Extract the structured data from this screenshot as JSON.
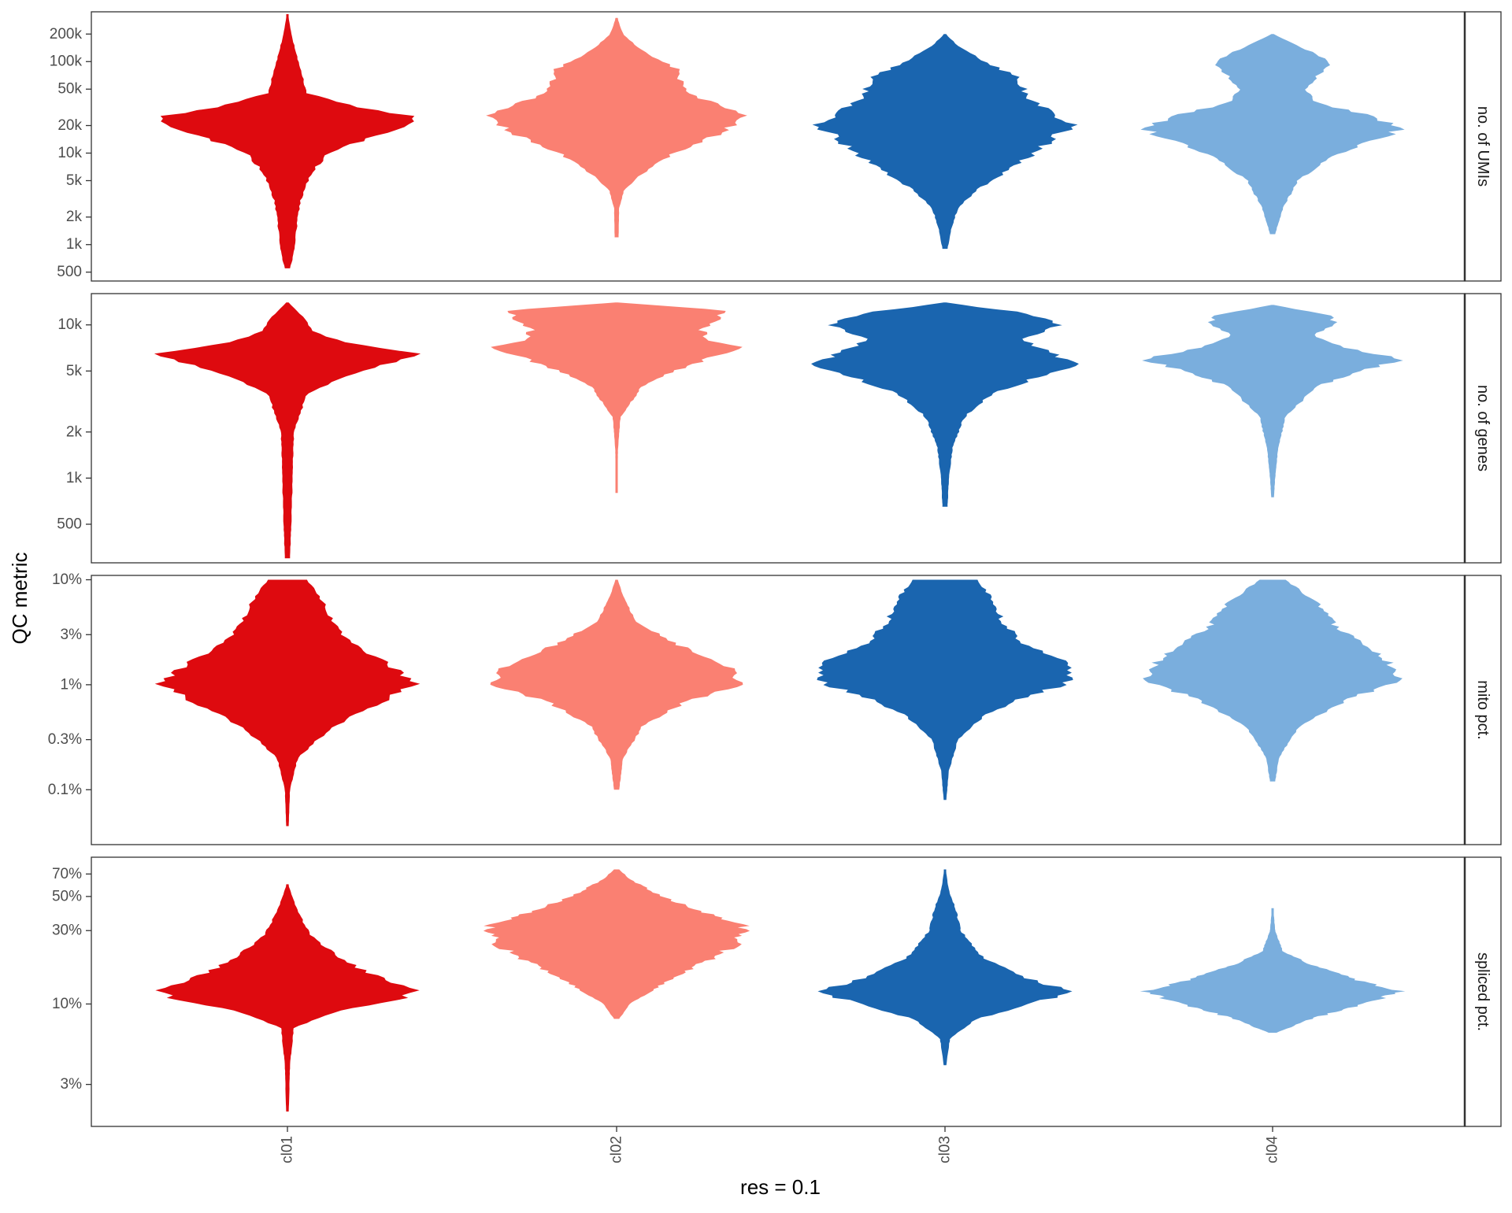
{
  "chart_data": {
    "type": "violin",
    "xlabel": "res = 0.1",
    "ylabel": "QC metric",
    "categories": [
      "cl01",
      "cl02",
      "cl03",
      "cl04"
    ],
    "colors": {
      "cl01": "#DE0A0F",
      "cl02": "#FA8072",
      "cl03": "#1A65AF",
      "cl04": "#7AAEDD"
    },
    "y_scale": "log10",
    "grid": false,
    "legend": "none",
    "panels": [
      {
        "strip_label": "no. of UMIs",
        "ylim": [
          400,
          350000
        ],
        "tick_values": [
          500,
          1000,
          2000,
          5000,
          10000,
          20000,
          50000,
          100000,
          200000
        ],
        "tick_labels": [
          "500",
          "1k",
          "2k",
          "5k",
          "10k",
          "20k",
          "50k",
          "100k",
          "200k"
        ],
        "violins": [
          {
            "category": "cl01",
            "min": 550,
            "max": 330000,
            "profile": [
              [
                550,
                0.02
              ],
              [
                800,
                0.05
              ],
              [
                1500,
                0.07
              ],
              [
                3000,
                0.1
              ],
              [
                6000,
                0.18
              ],
              [
                10000,
                0.32
              ],
              [
                15000,
                0.65
              ],
              [
                20000,
                0.95
              ],
              [
                25000,
                1.0
              ],
              [
                32000,
                0.55
              ],
              [
                45000,
                0.15
              ],
              [
                70000,
                0.12
              ],
              [
                120000,
                0.07
              ],
              [
                200000,
                0.03
              ],
              [
                330000,
                0.005
              ]
            ]
          },
          {
            "category": "cl02",
            "min": 1200,
            "max": 300000,
            "profile": [
              [
                1200,
                0.015
              ],
              [
                2500,
                0.02
              ],
              [
                4000,
                0.06
              ],
              [
                6000,
                0.2
              ],
              [
                10000,
                0.45
              ],
              [
                15000,
                0.75
              ],
              [
                25000,
                1.0
              ],
              [
                35000,
                0.75
              ],
              [
                45000,
                0.55
              ],
              [
                60000,
                0.5
              ],
              [
                80000,
                0.5
              ],
              [
                100000,
                0.35
              ],
              [
                150000,
                0.15
              ],
              [
                200000,
                0.05
              ],
              [
                300000,
                0.005
              ]
            ]
          },
          {
            "category": "cl03",
            "min": 900,
            "max": 200000,
            "profile": [
              [
                900,
                0.02
              ],
              [
                1500,
                0.05
              ],
              [
                2500,
                0.1
              ],
              [
                4000,
                0.25
              ],
              [
                6000,
                0.45
              ],
              [
                10000,
                0.7
              ],
              [
                15000,
                0.85
              ],
              [
                20000,
                1.0
              ],
              [
                30000,
                0.8
              ],
              [
                40000,
                0.65
              ],
              [
                55000,
                0.6
              ],
              [
                70000,
                0.55
              ],
              [
                100000,
                0.3
              ],
              [
                150000,
                0.1
              ],
              [
                200000,
                0.005
              ]
            ]
          },
          {
            "category": "cl04",
            "min": 1300,
            "max": 200000,
            "profile": [
              [
                1300,
                0.02
              ],
              [
                2500,
                0.08
              ],
              [
                5000,
                0.2
              ],
              [
                8000,
                0.4
              ],
              [
                12000,
                0.65
              ],
              [
                18000,
                1.0
              ],
              [
                25000,
                0.8
              ],
              [
                35000,
                0.35
              ],
              [
                50000,
                0.25
              ],
              [
                70000,
                0.35
              ],
              [
                90000,
                0.45
              ],
              [
                120000,
                0.35
              ],
              [
                160000,
                0.15
              ],
              [
                200000,
                0.005
              ]
            ]
          }
        ]
      },
      {
        "strip_label": "no. of genes",
        "ylim": [
          280,
          16000
        ],
        "tick_values": [
          500,
          1000,
          2000,
          5000,
          10000
        ],
        "tick_labels": [
          "500",
          "1k",
          "2k",
          "5k",
          "10k"
        ],
        "violins": [
          {
            "category": "cl01",
            "min": 300,
            "max": 14000,
            "profile": [
              [
                300,
                0.02
              ],
              [
                500,
                0.03
              ],
              [
                1000,
                0.04
              ],
              [
                2000,
                0.05
              ],
              [
                3500,
                0.15
              ],
              [
                4500,
                0.4
              ],
              [
                5500,
                0.75
              ],
              [
                6500,
                1.0
              ],
              [
                7500,
                0.5
              ],
              [
                9000,
                0.2
              ],
              [
                11000,
                0.13
              ],
              [
                13000,
                0.05
              ],
              [
                14000,
                0.005
              ]
            ]
          },
          {
            "category": "cl02",
            "min": 800,
            "max": 14000,
            "profile": [
              [
                800,
                0.005
              ],
              [
                1500,
                0.01
              ],
              [
                2500,
                0.03
              ],
              [
                4000,
                0.2
              ],
              [
                5000,
                0.45
              ],
              [
                6000,
                0.7
              ],
              [
                7000,
                1.0
              ],
              [
                8000,
                0.7
              ],
              [
                9500,
                0.65
              ],
              [
                11000,
                0.85
              ],
              [
                12500,
                0.8
              ],
              [
                14000,
                0.005
              ]
            ]
          },
          {
            "category": "cl03",
            "min": 650,
            "max": 14000,
            "profile": [
              [
                650,
                0.02
              ],
              [
                1000,
                0.03
              ],
              [
                1600,
                0.06
              ],
              [
                2500,
                0.15
              ],
              [
                3500,
                0.35
              ],
              [
                4500,
                0.7
              ],
              [
                5500,
                1.0
              ],
              [
                6500,
                0.85
              ],
              [
                8000,
                0.6
              ],
              [
                10000,
                0.9
              ],
              [
                12000,
                0.6
              ],
              [
                14000,
                0.005
              ]
            ]
          },
          {
            "category": "cl04",
            "min": 750,
            "max": 13500,
            "profile": [
              [
                750,
                0.01
              ],
              [
                1000,
                0.02
              ],
              [
                1500,
                0.04
              ],
              [
                2500,
                0.1
              ],
              [
                4000,
                0.35
              ],
              [
                5000,
                0.7
              ],
              [
                6000,
                1.0
              ],
              [
                7000,
                0.6
              ],
              [
                8500,
                0.3
              ],
              [
                10000,
                0.5
              ],
              [
                11500,
                0.45
              ],
              [
                13500,
                0.005
              ]
            ]
          }
        ]
      },
      {
        "strip_label": "mito pct.",
        "ylim": [
          0.03,
          11
        ],
        "tick_values": [
          0.1,
          0.3,
          1,
          3,
          10
        ],
        "tick_labels": [
          "0.1%",
          "0.3%",
          "1%",
          "3%",
          "10%"
        ],
        "violins": [
          {
            "category": "cl01",
            "min": 0.045,
            "max": 10,
            "profile": [
              [
                0.045,
                0.01
              ],
              [
                0.1,
                0.02
              ],
              [
                0.2,
                0.08
              ],
              [
                0.4,
                0.35
              ],
              [
                0.7,
                0.75
              ],
              [
                1,
                1.0
              ],
              [
                1.5,
                0.8
              ],
              [
                2.5,
                0.5
              ],
              [
                4,
                0.35
              ],
              [
                7,
                0.25
              ],
              [
                10,
                0.15
              ]
            ]
          },
          {
            "category": "cl02",
            "min": 0.1,
            "max": 10,
            "profile": [
              [
                0.1,
                0.02
              ],
              [
                0.2,
                0.05
              ],
              [
                0.4,
                0.2
              ],
              [
                0.7,
                0.55
              ],
              [
                1,
                1.0
              ],
              [
                1.5,
                0.85
              ],
              [
                2.5,
                0.45
              ],
              [
                4,
                0.15
              ],
              [
                7,
                0.05
              ],
              [
                10,
                0.01
              ]
            ]
          },
          {
            "category": "cl03",
            "min": 0.08,
            "max": 10,
            "profile": [
              [
                0.08,
                0.01
              ],
              [
                0.15,
                0.03
              ],
              [
                0.3,
                0.1
              ],
              [
                0.5,
                0.3
              ],
              [
                0.8,
                0.65
              ],
              [
                1,
                0.95
              ],
              [
                1.5,
                1.0
              ],
              [
                2.5,
                0.6
              ],
              [
                4,
                0.45
              ],
              [
                7,
                0.35
              ],
              [
                10,
                0.25
              ]
            ]
          },
          {
            "category": "cl04",
            "min": 0.12,
            "max": 10,
            "profile": [
              [
                0.12,
                0.02
              ],
              [
                0.2,
                0.05
              ],
              [
                0.4,
                0.2
              ],
              [
                0.7,
                0.55
              ],
              [
                1,
                0.9
              ],
              [
                1.3,
                1.0
              ],
              [
                2,
                0.8
              ],
              [
                3.5,
                0.5
              ],
              [
                6,
                0.35
              ],
              [
                10,
                0.1
              ]
            ]
          }
        ]
      },
      {
        "strip_label": "spliced pct.",
        "ylim": [
          1.6,
          90
        ],
        "tick_values": [
          3,
          10,
          30,
          50,
          70
        ],
        "tick_labels": [
          "3%",
          "10%",
          "30%",
          "50%",
          "70%"
        ],
        "violins": [
          {
            "category": "cl01",
            "min": 2,
            "max": 60,
            "profile": [
              [
                2,
                0.01
              ],
              [
                4,
                0.02
              ],
              [
                7,
                0.05
              ],
              [
                9,
                0.4
              ],
              [
                11,
                0.9
              ],
              [
                12.5,
                1.0
              ],
              [
                15,
                0.7
              ],
              [
                20,
                0.4
              ],
              [
                28,
                0.18
              ],
              [
                40,
                0.08
              ],
              [
                60,
                0.005
              ]
            ]
          },
          {
            "category": "cl02",
            "min": 8,
            "max": 75,
            "profile": [
              [
                8,
                0.02
              ],
              [
                10,
                0.1
              ],
              [
                15,
                0.45
              ],
              [
                20,
                0.75
              ],
              [
                25,
                0.95
              ],
              [
                32,
                1.0
              ],
              [
                40,
                0.65
              ],
              [
                50,
                0.35
              ],
              [
                65,
                0.1
              ],
              [
                75,
                0.02
              ]
            ]
          },
          {
            "category": "cl03",
            "min": 4,
            "max": 75,
            "profile": [
              [
                4,
                0.01
              ],
              [
                6,
                0.04
              ],
              [
                8,
                0.25
              ],
              [
                10,
                0.65
              ],
              [
                12,
                1.0
              ],
              [
                15,
                0.6
              ],
              [
                20,
                0.3
              ],
              [
                30,
                0.12
              ],
              [
                40,
                0.09
              ],
              [
                55,
                0.03
              ],
              [
                75,
                0.005
              ]
            ]
          },
          {
            "category": "cl04",
            "min": 6.5,
            "max": 42,
            "profile": [
              [
                6.5,
                0.03
              ],
              [
                8,
                0.3
              ],
              [
                10,
                0.7
              ],
              [
                12,
                1.0
              ],
              [
                14,
                0.7
              ],
              [
                18,
                0.3
              ],
              [
                22,
                0.08
              ],
              [
                30,
                0.02
              ],
              [
                42,
                0.005
              ]
            ]
          }
        ]
      }
    ]
  }
}
